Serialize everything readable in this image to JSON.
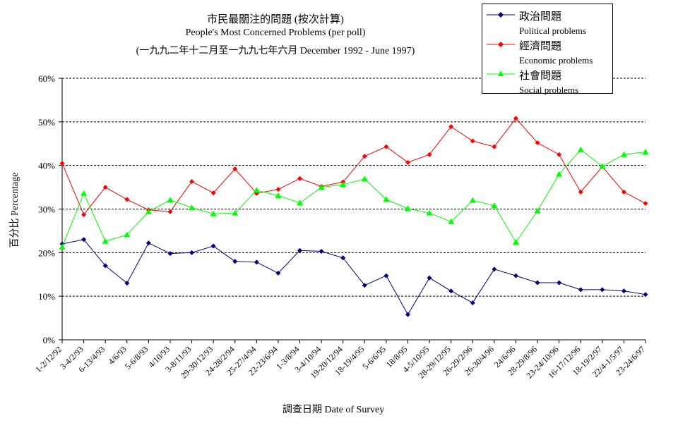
{
  "header": {
    "title_zh": "市民最關注的問題 (按次計算)",
    "title_en": "People's Most Concerned Problems  (per poll)",
    "subtitle": "(一九九二年十二月至一九九七年六月 December 1992 - June 1997)"
  },
  "axis": {
    "ylabel": "百分比 Percentage",
    "xlabel": "調查日期 Date of Survey"
  },
  "legend": {
    "items": [
      {
        "name": "政治問題",
        "en": "Political problems",
        "color": "#000080",
        "marker": "diamond"
      },
      {
        "name": "經濟問題",
        "en": "Economic problems",
        "color": "#ff0000",
        "marker": "diamond"
      },
      {
        "name": "社會問題",
        "en": "Social problems",
        "color": "#00ff00",
        "marker": "triangle"
      }
    ]
  },
  "chart_data": {
    "type": "line",
    "ylim": [
      0,
      60
    ],
    "yticks": [
      "0%",
      "10%",
      "20%",
      "30%",
      "40%",
      "50%",
      "60%"
    ],
    "grid": true,
    "legend_position": "top-right",
    "categories": [
      "1-2/12/92",
      "3-4/2/93",
      "6-13/4/93",
      "4/6/93",
      "5-6/8/93",
      "4/10/93",
      "3-8/11/93",
      "29-30/12/93",
      "24-28/2/94",
      "25-27/4/94",
      "22-23/6/94",
      "1-3/8/94",
      "3-4/10/94",
      "19-20/12/94",
      "18-19/4/95",
      "5-6/6/95",
      "18/8/95",
      "4-5/10/95",
      "28-29/12/95",
      "26-29/2/96",
      "26-30/4/96",
      "24/6/96",
      "28-29/8/96",
      "23-24/10/96",
      "16-17/12/96",
      "18-19/2/97",
      "22/4-1/5/97",
      "23-24/6/97"
    ],
    "series": [
      {
        "name": "政治問題",
        "color": "#000080",
        "marker": "diamond",
        "values": [
          22,
          23,
          17,
          13,
          22.2,
          19.8,
          20,
          21.5,
          18,
          17.8,
          15.3,
          20.5,
          20.3,
          18.8,
          12.5,
          14.7,
          5.8,
          14.2,
          11.2,
          8.5,
          16.2,
          14.7,
          13.1,
          13.1,
          11.5,
          11.5,
          11.2,
          10.4
        ]
      },
      {
        "name": "經濟問題",
        "color": "#ff0000",
        "marker": "diamond",
        "values": [
          40.5,
          28.7,
          35,
          32.2,
          29.8,
          29.4,
          36.3,
          33.7,
          39.2,
          33.6,
          34.5,
          37,
          35.2,
          36.2,
          42.1,
          44.3,
          40.7,
          42.5,
          48.9,
          45.6,
          44.3,
          50.8,
          45.2,
          42.5,
          33.9,
          39.7,
          33.9,
          31.3
        ]
      },
      {
        "name": "社會問題",
        "color": "#00ff00",
        "marker": "triangle",
        "values": [
          21.3,
          33.6,
          22.6,
          24.1,
          29.4,
          32.1,
          30.3,
          28.9,
          29.1,
          34.3,
          33.1,
          31.4,
          35,
          35.6,
          36.9,
          32.2,
          30.1,
          29.1,
          27.1,
          32,
          30.8,
          22.4,
          29.6,
          38,
          43.6,
          39.8,
          42.5,
          43.1
        ]
      }
    ]
  }
}
